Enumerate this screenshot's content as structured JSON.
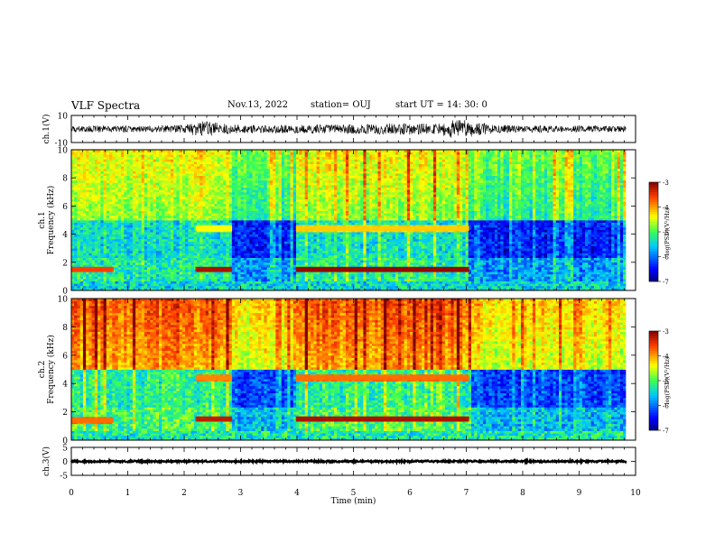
{
  "header": {
    "title": "VLF Spectra",
    "date": "Nov.13, 2022",
    "station": "station= OUJ",
    "start": "start  UT =   14: 30: 0"
  },
  "colors": {
    "very_low": "#00007f",
    "low": "#0030ff",
    "mid_low": "#00e6ff",
    "mid": "#30ff30",
    "mid_high": "#ffff00",
    "high": "#ff3000",
    "very_high": "#7f0000",
    "trace": "#000000"
  },
  "chart_data": [
    {
      "id": "ch1-waveform",
      "type": "line",
      "ylabel": "ch.1(V)",
      "ylim": [
        -10,
        10
      ],
      "yticks": [
        "10",
        "-10"
      ],
      "xlim": [
        0,
        10
      ],
      "envelope": {
        "description_points_min": [
          0,
          0.5,
          1.5,
          2.0,
          2.3,
          2.5,
          2.9,
          3.5,
          4.2,
          4.6,
          5.0,
          5.5,
          6.0,
          6.5,
          6.7,
          7.0,
          7.4,
          8.0,
          9.0,
          9.8
        ],
        "amplitude_v": [
          2.2,
          2.6,
          2.4,
          3.0,
          6.0,
          5.0,
          3.5,
          2.8,
          3.6,
          3.2,
          3.8,
          4.0,
          4.2,
          3.8,
          6.5,
          7.0,
          3.5,
          2.6,
          2.4,
          2.3
        ]
      }
    },
    {
      "id": "ch1-spectrogram",
      "type": "heatmap",
      "ylabel": "ch.1\nFrequency (kHz)",
      "ylim": [
        0,
        10
      ],
      "yticks": [
        "0",
        "2",
        "4",
        "6",
        "8",
        "10"
      ],
      "xlim": [
        0,
        10
      ],
      "data_end_min": 9.83,
      "colorbar": {
        "range": [
          -7,
          -3
        ],
        "ticks": [
          "-3",
          "-4",
          "-5",
          "-6",
          "-7"
        ],
        "label": "log(PSD)(V²/Hz)"
      },
      "bands": [
        {
          "freq_khz": 1.5,
          "from_min": 0.0,
          "to_min": 0.75,
          "level": -3.6
        },
        {
          "freq_khz": 1.5,
          "from_min": 2.2,
          "to_min": 2.85,
          "level": -3.2
        },
        {
          "freq_khz": 1.5,
          "from_min": 3.98,
          "to_min": 7.05,
          "level": -3.1
        },
        {
          "freq_khz": 4.4,
          "from_min": 2.2,
          "to_min": 2.85,
          "level": -4.4
        },
        {
          "freq_khz": 4.4,
          "from_min": 3.98,
          "to_min": 7.05,
          "level": -4.2
        }
      ],
      "quiet_gaps_min": [
        [
          2.85,
          3.98
        ],
        [
          7.05,
          9.83
        ]
      ],
      "high_band_level": -4.6,
      "low_band_level": -6.0
    },
    {
      "id": "ch2-spectrogram",
      "type": "heatmap",
      "ylabel": "ch.2\nFrequency (kHz)",
      "ylim": [
        0,
        10
      ],
      "yticks": [
        "0",
        "2",
        "4",
        "6",
        "8",
        "10"
      ],
      "xlim": [
        0,
        10
      ],
      "data_end_min": 9.83,
      "colorbar": {
        "range": [
          -7,
          -3
        ],
        "ticks": [
          "-3",
          "-4",
          "-5",
          "-6",
          "-7"
        ],
        "label": "log(PSD)(V²/Hz)"
      },
      "bands": [
        {
          "freq_khz": 1.4,
          "from_min": 0.0,
          "to_min": 0.75,
          "level": -3.8
        },
        {
          "freq_khz": 1.5,
          "from_min": 2.2,
          "to_min": 2.85,
          "level": -3.3
        },
        {
          "freq_khz": 1.5,
          "from_min": 3.98,
          "to_min": 7.05,
          "level": -3.2
        },
        {
          "freq_khz": 4.4,
          "from_min": 2.2,
          "to_min": 2.85,
          "level": -3.9
        },
        {
          "freq_khz": 4.4,
          "from_min": 3.98,
          "to_min": 7.05,
          "level": -3.8
        }
      ],
      "quiet_gaps_min": [
        [
          2.85,
          3.98
        ],
        [
          7.05,
          9.83
        ]
      ],
      "high_band_level": -3.9,
      "low_band_level": -5.8
    },
    {
      "id": "ch3-waveform",
      "type": "line",
      "ylabel": "ch.3(V)",
      "ylim": [
        -5,
        5
      ],
      "yticks": [
        "5",
        "0",
        "-5"
      ],
      "xlim": [
        0,
        10
      ],
      "xticks": [
        "0",
        "1",
        "2",
        "3",
        "4",
        "5",
        "6",
        "7",
        "8",
        "9",
        "10"
      ],
      "xlabel": "Time (min)",
      "constant_value_v": 0,
      "amplitude_v": 0.3
    }
  ]
}
